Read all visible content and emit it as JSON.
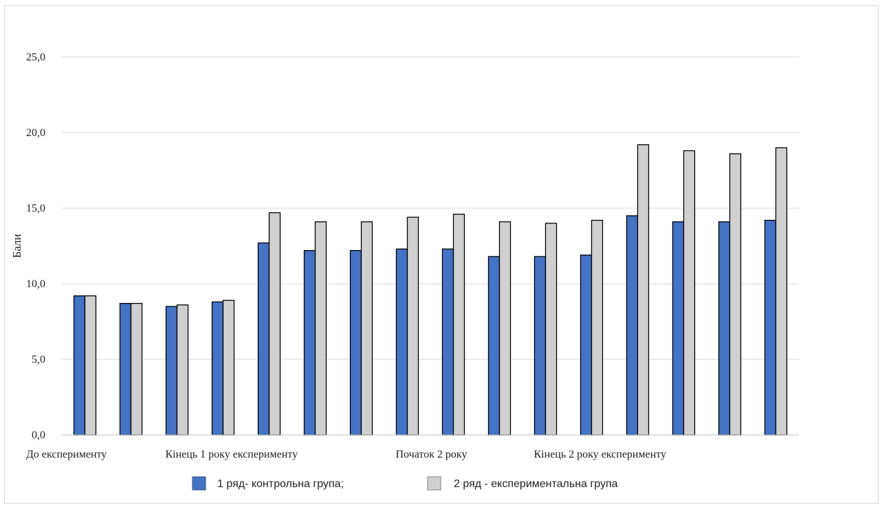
{
  "chart_data": {
    "type": "bar",
    "title": "",
    "xlabel": "",
    "ylabel": "Бали",
    "ylim": [
      0,
      25
    ],
    "yticks": [
      "0,0",
      "5,0",
      "10,0",
      "15,0",
      "20,0",
      "25,0"
    ],
    "ytick_values": [
      0,
      5,
      10,
      15,
      20,
      25
    ],
    "grid": true,
    "legend_position": "bottom",
    "category_labels": [
      {
        "index": 0,
        "text": "До експерименту"
      },
      {
        "index": 3,
        "text": "Кінець 1 року експерименту"
      },
      {
        "index": 8,
        "text": "Початок 2 року"
      },
      {
        "index": 11,
        "text": "Кінець 2 року експерименту"
      }
    ],
    "num_groups": 16,
    "series": [
      {
        "name": "1 ряд- контрольна група;",
        "color": "#4472c4",
        "values": [
          9.2,
          8.7,
          8.5,
          8.8,
          12.7,
          12.2,
          12.2,
          12.3,
          12.3,
          11.8,
          11.8,
          11.9,
          14.5,
          14.1,
          14.1,
          14.2
        ]
      },
      {
        "name": "2 ряд - експериментальна  група",
        "color": "#d0d0d0",
        "values": [
          9.2,
          8.7,
          8.6,
          8.9,
          14.7,
          14.1,
          14.1,
          14.4,
          14.6,
          14.1,
          14.0,
          14.2,
          19.2,
          18.8,
          18.6,
          19.0
        ]
      }
    ]
  }
}
